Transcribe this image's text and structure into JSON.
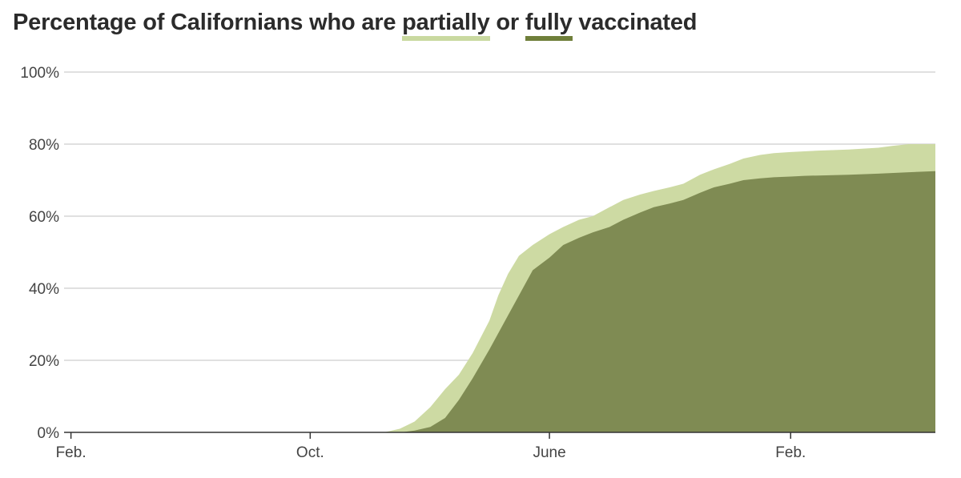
{
  "title": {
    "prefix": "Percentage of Californians who are ",
    "partial_word": "partially",
    "middle": " or ",
    "full_word": "fully",
    "suffix": " vaccinated"
  },
  "colors": {
    "partial": "#cddaa3",
    "full": "#7f8b53",
    "grid": "#d6d6d6",
    "axis": "#333333"
  },
  "chart_data": {
    "type": "area",
    "title": "Percentage of Californians who are partially or fully vaccinated",
    "xlabel": "",
    "ylabel": "",
    "ylim": [
      0,
      100
    ],
    "y_ticks": [
      0,
      20,
      40,
      60,
      80,
      100
    ],
    "y_tick_labels": [
      "0%",
      "20%",
      "40%",
      "60%",
      "80%",
      "100%"
    ],
    "x_ticks": [
      "2020-02-01",
      "2020-10-01",
      "2021-06-01",
      "2022-02-01"
    ],
    "x_tick_labels": [
      "Feb.",
      "Oct.",
      "June",
      "Feb."
    ],
    "xlim": [
      "2020-01-25",
      "2022-06-28"
    ],
    "grid": true,
    "stacked": false,
    "series": [
      {
        "name": "partially",
        "x": [
          "2020-12-15",
          "2020-12-31",
          "2021-01-15",
          "2021-01-31",
          "2021-02-15",
          "2021-03-01",
          "2021-03-15",
          "2021-04-01",
          "2021-04-10",
          "2021-04-20",
          "2021-05-01",
          "2021-05-15",
          "2021-06-01",
          "2021-06-15",
          "2021-07-01",
          "2021-07-15",
          "2021-08-01",
          "2021-08-15",
          "2021-09-01",
          "2021-09-15",
          "2021-10-01",
          "2021-10-15",
          "2021-11-01",
          "2021-11-15",
          "2021-12-01",
          "2021-12-15",
          "2022-01-01",
          "2022-01-15",
          "2022-02-01",
          "2022-02-15",
          "2022-03-01",
          "2022-04-01",
          "2022-05-01",
          "2022-05-15",
          "2022-06-01",
          "2022-06-28"
        ],
        "y": [
          0,
          1,
          3,
          7,
          12,
          16,
          22,
          31,
          38,
          44,
          49,
          52,
          55,
          57,
          59,
          60,
          62.5,
          64.5,
          66,
          67,
          68,
          69,
          71.5,
          73,
          74.5,
          76,
          77,
          77.5,
          77.8,
          78,
          78.2,
          78.5,
          79,
          79.5,
          80,
          80
        ]
      },
      {
        "name": "fully",
        "x": [
          "2020-12-15",
          "2021-01-01",
          "2021-01-15",
          "2021-01-31",
          "2021-02-15",
          "2021-03-01",
          "2021-03-15",
          "2021-04-01",
          "2021-04-15",
          "2021-05-01",
          "2021-05-15",
          "2021-06-01",
          "2021-06-15",
          "2021-07-01",
          "2021-07-15",
          "2021-08-01",
          "2021-08-15",
          "2021-09-01",
          "2021-09-15",
          "2021-10-01",
          "2021-10-15",
          "2021-11-01",
          "2021-11-15",
          "2021-12-01",
          "2021-12-15",
          "2022-01-01",
          "2022-01-15",
          "2022-02-01",
          "2022-02-15",
          "2022-03-01",
          "2022-04-01",
          "2022-05-01",
          "2022-06-01",
          "2022-06-28"
        ],
        "y": [
          0,
          0,
          0.5,
          1.5,
          4,
          9,
          15,
          23,
          30,
          38,
          45,
          48.5,
          52,
          54,
          55.5,
          57,
          59,
          61,
          62.5,
          63.5,
          64.5,
          66.5,
          68,
          69,
          70,
          70.5,
          70.8,
          71,
          71.2,
          71.3,
          71.5,
          71.8,
          72.2,
          72.5
        ]
      }
    ]
  }
}
